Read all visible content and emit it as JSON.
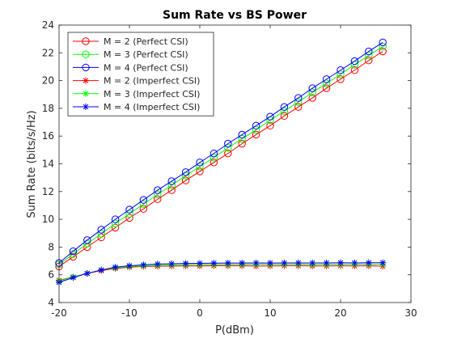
{
  "chart_data": {
    "type": "line",
    "title": "Sum Rate vs BS Power",
    "xlabel": "P(dBm)",
    "ylabel": "Sum Rate (bits/s/Hz)",
    "xlim": [
      -20,
      30
    ],
    "ylim": [
      4,
      24
    ],
    "xticks": [
      -20,
      -10,
      0,
      10,
      20,
      30
    ],
    "yticks": [
      4,
      6,
      8,
      10,
      12,
      14,
      16,
      18,
      20,
      22,
      24
    ],
    "grid": false,
    "legend_position": "top-left",
    "x": [
      -20,
      -18,
      -16,
      -14,
      -12,
      -10,
      -8,
      -6,
      -4,
      -2,
      0,
      2,
      4,
      6,
      8,
      10,
      12,
      14,
      16,
      18,
      20,
      22,
      24,
      26
    ],
    "series": [
      {
        "name": "M = 2 (Perfect CSI)",
        "color": "#ff0000",
        "marker": "circle",
        "values": [
          6.6,
          7.3,
          8.0,
          8.7,
          9.4,
          10.1,
          10.75,
          11.45,
          12.1,
          12.8,
          13.45,
          14.1,
          14.75,
          15.45,
          16.1,
          16.75,
          17.45,
          18.1,
          18.75,
          19.45,
          20.1,
          20.75,
          21.45,
          22.1
        ]
      },
      {
        "name": "M = 3 (Perfect CSI)",
        "color": "#00ff00",
        "marker": "circle",
        "values": [
          6.75,
          7.5,
          8.25,
          8.95,
          9.7,
          10.4,
          11.1,
          11.8,
          12.45,
          13.15,
          13.8,
          14.45,
          15.15,
          15.8,
          16.45,
          17.15,
          17.8,
          18.45,
          19.15,
          19.8,
          20.45,
          21.15,
          21.8,
          22.45
        ]
      },
      {
        "name": "M = 4 (Perfect CSI)",
        "color": "#0000ff",
        "marker": "circle",
        "values": [
          6.85,
          7.7,
          8.5,
          9.25,
          10.0,
          10.7,
          11.4,
          12.1,
          12.75,
          13.4,
          14.1,
          14.75,
          15.45,
          16.1,
          16.75,
          17.4,
          18.1,
          18.75,
          19.45,
          20.1,
          20.75,
          21.4,
          22.1,
          22.75
        ]
      },
      {
        "name": "M = 2 (Imperfect CSI)",
        "color": "#ff0000",
        "marker": "asterisk",
        "values": [
          5.6,
          5.85,
          6.1,
          6.3,
          6.45,
          6.55,
          6.6,
          6.62,
          6.63,
          6.64,
          6.64,
          6.65,
          6.65,
          6.65,
          6.63,
          6.64,
          6.65,
          6.65,
          6.64,
          6.64,
          6.65,
          6.64,
          6.65,
          6.62
        ]
      },
      {
        "name": "M = 3 (Imperfect CSI)",
        "color": "#00ff00",
        "marker": "asterisk",
        "values": [
          5.55,
          5.85,
          6.1,
          6.35,
          6.5,
          6.6,
          6.65,
          6.7,
          6.72,
          6.73,
          6.74,
          6.74,
          6.75,
          6.75,
          6.76,
          6.75,
          6.76,
          6.76,
          6.75,
          6.76,
          6.76,
          6.77,
          6.76,
          6.76
        ]
      },
      {
        "name": "M = 4 (Imperfect CSI)",
        "color": "#0000ff",
        "marker": "asterisk",
        "values": [
          5.45,
          5.8,
          6.1,
          6.35,
          6.55,
          6.65,
          6.72,
          6.78,
          6.8,
          6.82,
          6.83,
          6.84,
          6.85,
          6.85,
          6.86,
          6.85,
          6.86,
          6.86,
          6.86,
          6.86,
          6.87,
          6.86,
          6.87,
          6.87
        ]
      }
    ]
  }
}
